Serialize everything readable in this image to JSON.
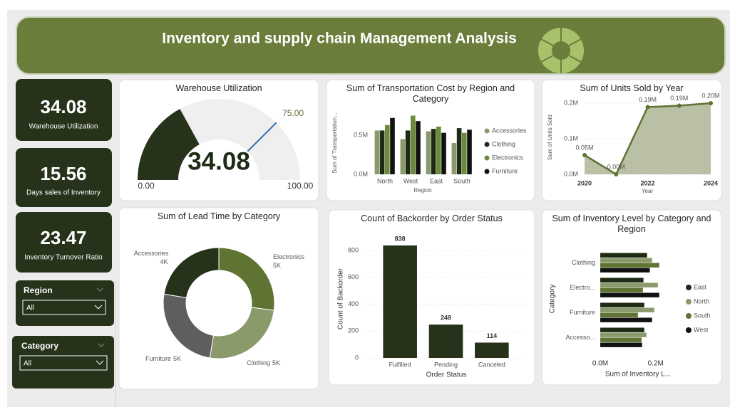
{
  "header": {
    "title": "Inventory and supply chain Management Analysis"
  },
  "kpis": [
    {
      "value": 34.08,
      "label": "Warehouse Utilization"
    },
    {
      "value": 15.56,
      "label": "Days sales of Inventory"
    },
    {
      "value": 23.47,
      "label": "Inventory Turnover Ratio"
    }
  ],
  "slicers": [
    {
      "title": "Region",
      "selected": "All"
    },
    {
      "title": "Category",
      "selected": "All"
    }
  ],
  "chart_data": [
    {
      "type": "gauge",
      "title": "Warehouse Utilization",
      "value": 34.08,
      "min": {
        "value": 0,
        "label": "0.00"
      },
      "max": {
        "value": 100,
        "label": "100.00"
      },
      "target": {
        "value": 75,
        "label": "75.00"
      },
      "color": "#27321b",
      "track_color": "#efefef",
      "target_color": "#2e6db0"
    },
    {
      "type": "bar",
      "title": "Sum of Transportation Cost by Region and Category",
      "x_label": "Region",
      "y_label": "Sum of Transportation...",
      "categories": [
        "North",
        "West",
        "East",
        "South"
      ],
      "series": [
        {
          "name": "Accessories",
          "color": "#8a9a6a",
          "values": [
            560000,
            450000,
            550000,
            400000
          ]
        },
        {
          "name": "Clothing",
          "color": "#1e2a14",
          "values": [
            560000,
            560000,
            580000,
            590000
          ]
        },
        {
          "name": "Electronics",
          "color": "#6b8a3a",
          "values": [
            630000,
            750000,
            610000,
            530000
          ]
        },
        {
          "name": "Furniture",
          "color": "#111111",
          "values": [
            720000,
            680000,
            530000,
            570000
          ]
        }
      ],
      "ylim": [
        0,
        800000
      ],
      "yticks": [
        {
          "value": 0,
          "label": "0.0M"
        },
        {
          "value": 500000,
          "label": "0.5M"
        }
      ],
      "grid": false,
      "legend": "right"
    },
    {
      "type": "line",
      "title": "Sum of Units Sold by Year",
      "x_label": "Year",
      "y_label": "Sum of Units Sold",
      "x": [
        2020,
        2021,
        2022,
        2023,
        2024
      ],
      "values": [
        54000,
        0,
        189000,
        193000,
        200000
      ],
      "value_labels": [
        "0.05M",
        "0.00M",
        "0.19M",
        "0.19M",
        "0.20M"
      ],
      "color": "#5f7332",
      "area_color": "#b9c0a6",
      "xlim": [
        2020,
        2024
      ],
      "xticks": [
        2020,
        2022,
        2024
      ],
      "ylim": [
        0,
        210000
      ],
      "yticks": [
        {
          "value": 0,
          "label": "0.0M"
        },
        {
          "value": 100000,
          "label": "0.1M"
        },
        {
          "value": 200000,
          "label": "0.2M"
        }
      ],
      "grid": true
    },
    {
      "type": "donut",
      "title": "Sum of Lead Time by Category",
      "categories": [
        "Electronics",
        "Clothing",
        "Furniture",
        "Accessories"
      ],
      "values": [
        5200,
        4900,
        4800,
        4300
      ],
      "value_labels": [
        "5K",
        "5K",
        "5K",
        "4K"
      ],
      "colors": [
        "#5f7332",
        "#8a9a6a",
        "#5e5e5e",
        "#27321b"
      ]
    },
    {
      "type": "column",
      "title": "Count of Backorder by Order Status",
      "x_label": "Order Status",
      "y_label": "Count of Backorder",
      "categories": [
        "Fulfilled",
        "Pending",
        "Canceled"
      ],
      "values": [
        838,
        248,
        114
      ],
      "color": "#27321b",
      "ylim": [
        0,
        880
      ],
      "yticks": [
        0,
        200,
        400,
        600,
        800
      ],
      "grid": true
    },
    {
      "type": "hbar",
      "title": "Sum of Inventory Level by Category and Region",
      "x_label": "Sum of Inventory L...",
      "y_label": "Category",
      "categories": [
        "Clothing",
        "Electro...",
        "Furniture",
        "Accesso..."
      ],
      "series": [
        {
          "name": "East",
          "color": "#1e2a14",
          "values": [
            169000,
            156000,
            159000,
            159000
          ]
        },
        {
          "name": "North",
          "color": "#8a9a6a",
          "values": [
            187000,
            208000,
            195000,
            167000
          ]
        },
        {
          "name": "South",
          "color": "#5f7332",
          "values": [
            213000,
            154000,
            136000,
            149000
          ]
        },
        {
          "name": "West",
          "color": "#111111",
          "values": [
            179000,
            213000,
            187000,
            151000
          ]
        }
      ],
      "xlim": [
        0,
        260000
      ],
      "xticks": [
        {
          "value": 0,
          "label": "0.0M"
        },
        {
          "value": 200000,
          "label": "0.2M"
        }
      ],
      "legend": "right"
    }
  ]
}
